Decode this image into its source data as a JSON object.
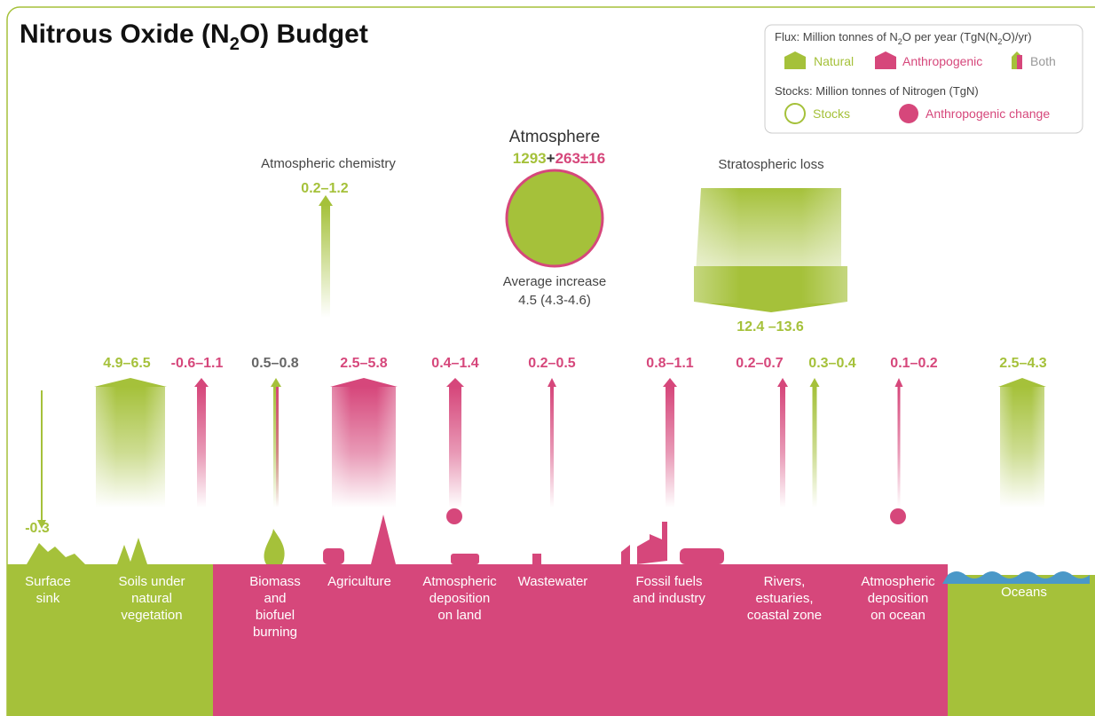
{
  "title": {
    "pre": "Nitrous Oxide (N",
    "sub": "2",
    "post": "O) Budget"
  },
  "legend": {
    "flux": [
      "Flux: Million tonnes of N",
      "2",
      "O per year (TgN(N",
      "2",
      "O)/yr)"
    ],
    "natural": "Natural",
    "anthropogenic": "Anthropogenic",
    "both": "Both",
    "stocks_title": "Stocks: Million tonnes of Nitrogen (TgN)",
    "stocks": "Stocks",
    "anthropogenic_change": "Anthropogenic change"
  },
  "atmosphere": {
    "name": "Atmosphere",
    "stock": "1293",
    "plus": "+",
    "change": "263",
    "pm": "±",
    "uncertainty": "16",
    "increase_label": "Average increase",
    "increase": "4.5 (4.3-4.6)"
  },
  "sinks": {
    "chemistry": {
      "label": "Atmospheric chemistry",
      "value": "0.2–1.2"
    },
    "stratosphere": {
      "label": "Stratospheric loss",
      "value": "12.4 –13.6"
    }
  },
  "sources": [
    {
      "label": [
        "Surface",
        "sink"
      ],
      "fluxes": [
        "-0.3"
      ]
    },
    {
      "label": [
        "Soils under",
        "natural",
        "vegetation"
      ],
      "fluxes": [
        "4.9–6.5",
        "-0.6–1.1"
      ]
    },
    {
      "label": [
        "Biomass",
        "and",
        "biofuel",
        "burning"
      ],
      "fluxes": [
        "0.5–0.8"
      ]
    },
    {
      "label": [
        "Agriculture"
      ],
      "fluxes": [
        "2.5–5.8"
      ]
    },
    {
      "label": [
        "Atmospheric",
        "deposition",
        "on land"
      ],
      "fluxes": [
        "0.4–1.4"
      ]
    },
    {
      "label": [
        "Wastewater"
      ],
      "fluxes": [
        "0.2–0.5"
      ]
    },
    {
      "label": [
        "Fossil fuels",
        "and industry"
      ],
      "fluxes": [
        "0.8–1.1"
      ]
    },
    {
      "label": [
        "Rivers,",
        "estuaries,",
        "coastal zone"
      ],
      "fluxes": [
        "0.2–0.7",
        "0.3–0.4"
      ]
    },
    {
      "label": [
        "Atmospheric",
        "deposition",
        "on ocean"
      ],
      "fluxes": [
        "0.1–0.2"
      ]
    },
    {
      "label": [
        "Oceans"
      ],
      "fluxes": [
        "2.5–4.3"
      ]
    }
  ]
}
